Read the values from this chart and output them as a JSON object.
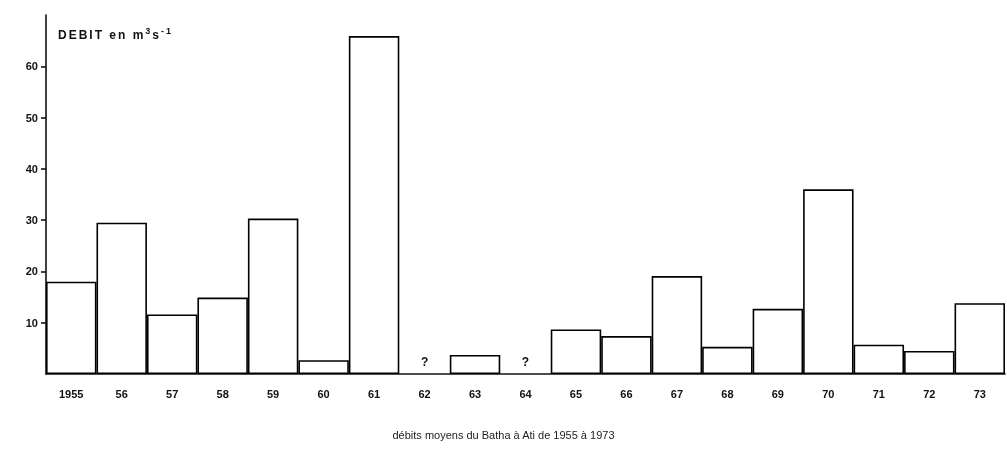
{
  "chart_data": {
    "type": "bar",
    "title": "débits moyens du Batha à Ati de 1955 à 1973",
    "ylabel": "DEBIT en m$^{3}$s$^{-1}$",
    "categories": [
      "1955",
      "56",
      "57",
      "58",
      "59",
      "60",
      "61",
      "62",
      "63",
      "64",
      "65",
      "66",
      "67",
      "68",
      "69",
      "70",
      "71",
      "72",
      "73"
    ],
    "values": [
      18.0,
      29.5,
      11.6,
      14.9,
      30.3,
      2.7,
      65.9,
      null,
      3.7,
      null,
      8.7,
      7.4,
      19.1,
      5.3,
      12.7,
      36.0,
      5.7,
      4.5,
      13.8
    ],
    "color": "#000000",
    "ylim": [
      0,
      70
    ],
    "yticks": [
      10,
      20,
      30,
      40,
      50,
      60
    ],
    "annotations": [
      "?",
      "?"
    ]
  }
}
